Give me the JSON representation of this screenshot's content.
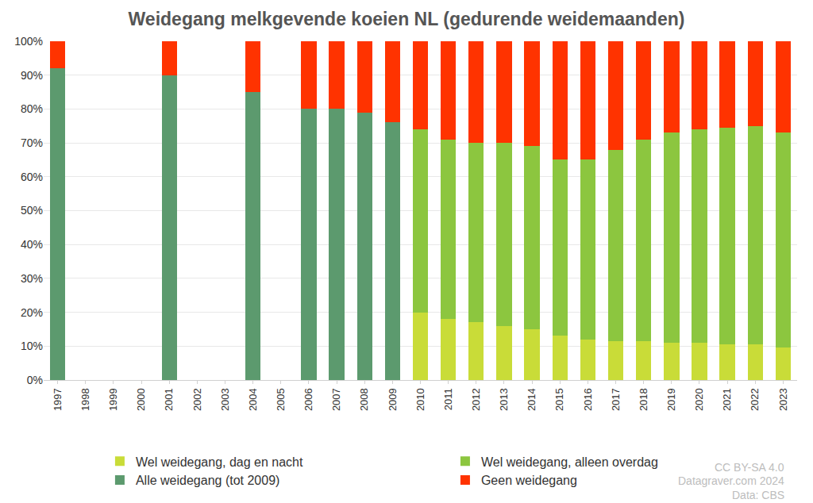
{
  "chart_data": {
    "type": "bar",
    "title": "Weidegang melkgevende koeien NL (gedurende weidemaanden)",
    "stacked": true,
    "grid": true,
    "legend": "bottom",
    "categories": [
      "1997",
      "1998",
      "1999",
      "2000",
      "2001",
      "2002",
      "2003",
      "2004",
      "2005",
      "2006",
      "2007",
      "2008",
      "2009",
      "2010",
      "2011",
      "2012",
      "2013",
      "2014",
      "2015",
      "2016",
      "2017",
      "2018",
      "2019",
      "2020",
      "2021",
      "2022",
      "2023"
    ],
    "series": [
      {
        "name": "Wel weidegang, dag en nacht",
        "color": "#c9dc38",
        "values": [
          null,
          null,
          null,
          null,
          null,
          null,
          null,
          null,
          null,
          null,
          null,
          null,
          null,
          20,
          18,
          17,
          16,
          15,
          13,
          12,
          11.5,
          11.5,
          11,
          11,
          10.5,
          10.5,
          9.5
        ]
      },
      {
        "name": "Wel weidegang, alleen overdag",
        "color": "#8cc63f",
        "values": [
          null,
          null,
          null,
          null,
          null,
          null,
          null,
          null,
          null,
          null,
          null,
          null,
          null,
          54,
          53,
          53,
          54,
          54,
          52,
          53,
          56.5,
          59.5,
          62,
          63,
          64,
          64.5,
          63.5
        ]
      },
      {
        "name": "Alle weidegang (tot 2009)",
        "color": "#5c9a6e",
        "values": [
          92,
          null,
          null,
          null,
          90,
          null,
          null,
          85,
          null,
          80,
          80,
          79,
          76,
          null,
          null,
          null,
          null,
          null,
          null,
          null,
          null,
          null,
          null,
          null,
          null,
          null,
          null
        ]
      },
      {
        "name": "Geen weidegang",
        "color": "#ff3300",
        "values": [
          8,
          null,
          null,
          null,
          10,
          null,
          null,
          15,
          null,
          20,
          20,
          21,
          24,
          26,
          29,
          30,
          30,
          31,
          35,
          35,
          32,
          29,
          27,
          26,
          25.5,
          25,
          27
        ]
      }
    ],
    "ylim": [
      0,
      100
    ],
    "yticks": [
      {
        "value": 0,
        "label": "0%"
      },
      {
        "value": 10,
        "label": "10%"
      },
      {
        "value": 20,
        "label": "20%"
      },
      {
        "value": 30,
        "label": "30%"
      },
      {
        "value": 40,
        "label": "40%"
      },
      {
        "value": 50,
        "label": "50%"
      },
      {
        "value": 60,
        "label": "60%"
      },
      {
        "value": 70,
        "label": "70%"
      },
      {
        "value": 80,
        "label": "80%"
      },
      {
        "value": 90,
        "label": "90%"
      },
      {
        "value": 100,
        "label": "100%"
      }
    ],
    "annotations": [
      "CC BY-SA 4.0",
      "Datagraver.com 2024",
      "Data: CBS"
    ]
  }
}
